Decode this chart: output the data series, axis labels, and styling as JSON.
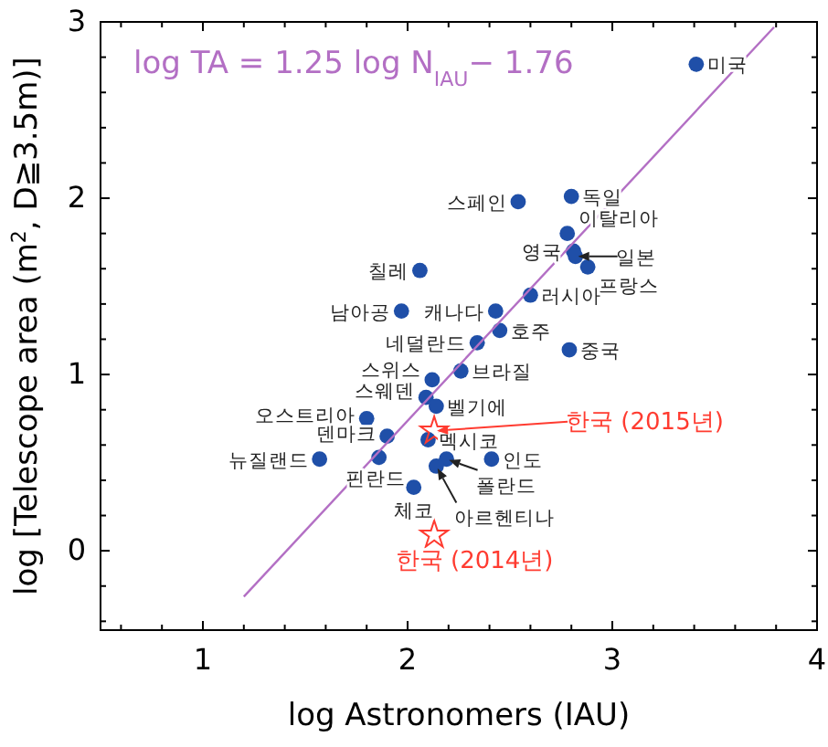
{
  "chart_data": {
    "type": "scatter",
    "xlabel": "log Astronomers (IAU)",
    "ylabel": "log [Telescope area (m$^{2}$, D≧3.5m)]",
    "xlim": [
      0.5,
      4
    ],
    "ylim": [
      -0.45,
      3
    ],
    "xticks": [
      {
        "value": 0.6,
        "label": null
      },
      {
        "value": 0.8,
        "label": null
      },
      1,
      {
        "value": 1.2,
        "label": null
      },
      {
        "value": 1.4,
        "label": null
      },
      {
        "value": 1.6,
        "label": null
      },
      {
        "value": 1.8,
        "label": null
      },
      2,
      {
        "value": 2.2,
        "label": null
      },
      {
        "value": 2.4,
        "label": null
      },
      {
        "value": 2.6,
        "label": null
      },
      {
        "value": 2.8,
        "label": null
      },
      3,
      {
        "value": 3.2,
        "label": null
      },
      {
        "value": 3.4,
        "label": null
      },
      {
        "value": 3.6,
        "label": null
      },
      {
        "value": 3.8,
        "label": null
      },
      4
    ],
    "yticks": [
      {
        "value": -0.4,
        "label": null
      },
      {
        "value": -0.2,
        "label": null
      },
      0,
      {
        "value": 0.2,
        "label": null
      },
      {
        "value": 0.4,
        "label": null
      },
      {
        "value": 0.6,
        "label": null
      },
      {
        "value": 0.8,
        "label": null
      },
      1,
      {
        "value": 1.2,
        "label": null
      },
      {
        "value": 1.4,
        "label": null
      },
      {
        "value": 1.6,
        "label": null
      },
      {
        "value": 1.8,
        "label": null
      },
      2,
      {
        "value": 2.2,
        "label": null
      },
      {
        "value": 2.4,
        "label": null
      },
      {
        "value": 2.6,
        "label": null
      },
      {
        "value": 2.8,
        "label": null
      },
      3
    ],
    "grid": false,
    "series": [
      {
        "type": "scatter",
        "marker": "circle",
        "color": "#1f4fa8",
        "x": [
          3.41,
          2.54,
          2.8,
          2.78,
          2.81,
          2.82,
          2.88,
          2.06,
          2.6,
          1.97,
          2.43,
          2.45,
          2.34,
          2.79,
          2.26,
          2.12,
          2.09,
          2.14,
          1.8,
          1.9,
          2.1,
          2.41,
          1.57,
          1.86,
          2.19,
          2.03,
          2.14
        ],
        "values": [
          2.76,
          1.98,
          2.01,
          1.8,
          1.7,
          1.67,
          1.61,
          1.59,
          1.45,
          1.36,
          1.36,
          1.25,
          1.18,
          1.14,
          1.02,
          0.97,
          0.87,
          0.82,
          0.75,
          0.65,
          0.63,
          0.52,
          0.52,
          0.53,
          0.52,
          0.36,
          0.48
        ]
      },
      {
        "type": "scatter",
        "marker": "star",
        "color": "#ff3b30",
        "x": [
          2.13,
          2.13
        ],
        "values": [
          0.68,
          0.09
        ]
      },
      {
        "type": "line",
        "marker": "none",
        "line_style": "solid",
        "color": "#b36fc4",
        "x": [
          1.2,
          3.79
        ],
        "values": [
          -0.26,
          2.97
        ]
      }
    ],
    "annotations": [
      "log TA = 1.25 log N$_{IAU}$− 1.76",
      {
        "text": "미국",
        "x": 3.41,
        "y": 2.76
      },
      {
        "text": "스페인",
        "x": 2.54,
        "y": 1.98
      },
      {
        "text": "독일",
        "x": 2.8,
        "y": 2.01
      },
      {
        "text": "이탈리아",
        "x": 2.78,
        "y": 1.8
      },
      {
        "text": "영국",
        "x": 2.81,
        "y": 1.7
      },
      {
        "text": "일본",
        "x": 2.82,
        "y": 1.67
      },
      {
        "text": "프랑스",
        "x": 2.88,
        "y": 1.61
      },
      {
        "text": "칠레",
        "x": 2.06,
        "y": 1.59
      },
      {
        "text": "러시아",
        "x": 2.6,
        "y": 1.45
      },
      {
        "text": "남아공",
        "x": 1.97,
        "y": 1.36
      },
      {
        "text": "캐나다",
        "x": 2.43,
        "y": 1.36
      },
      {
        "text": "호주",
        "x": 2.45,
        "y": 1.25
      },
      {
        "text": "네덜란드",
        "x": 2.34,
        "y": 1.18
      },
      {
        "text": "중국",
        "x": 2.79,
        "y": 1.14
      },
      {
        "text": "브라질",
        "x": 2.26,
        "y": 1.02
      },
      {
        "text": "스위스",
        "x": 2.12,
        "y": 0.97
      },
      {
        "text": "스웨덴",
        "x": 2.09,
        "y": 0.87
      },
      {
        "text": "벨기에",
        "x": 2.14,
        "y": 0.82
      },
      {
        "text": "오스트리아",
        "x": 1.8,
        "y": 0.75
      },
      {
        "text": "덴마크",
        "x": 1.9,
        "y": 0.65
      },
      {
        "text": "멕시코",
        "x": 2.1,
        "y": 0.63
      },
      {
        "text": "인도",
        "x": 2.41,
        "y": 0.52
      },
      {
        "text": "뉴질랜드",
        "x": 1.57,
        "y": 0.52
      },
      {
        "text": "핀란드",
        "x": 1.86,
        "y": 0.53
      },
      {
        "text": "폴란드",
        "x": 2.19,
        "y": 0.52
      },
      {
        "text": "체코",
        "x": 2.03,
        "y": 0.36
      },
      {
        "text": "아르헨티나",
        "x": 2.14,
        "y": 0.48
      },
      {
        "text": "한국 (2015년)",
        "x": 2.13,
        "y": 0.68
      },
      {
        "text": "한국 (2014년)",
        "x": 2.13,
        "y": 0.09
      }
    ]
  }
}
